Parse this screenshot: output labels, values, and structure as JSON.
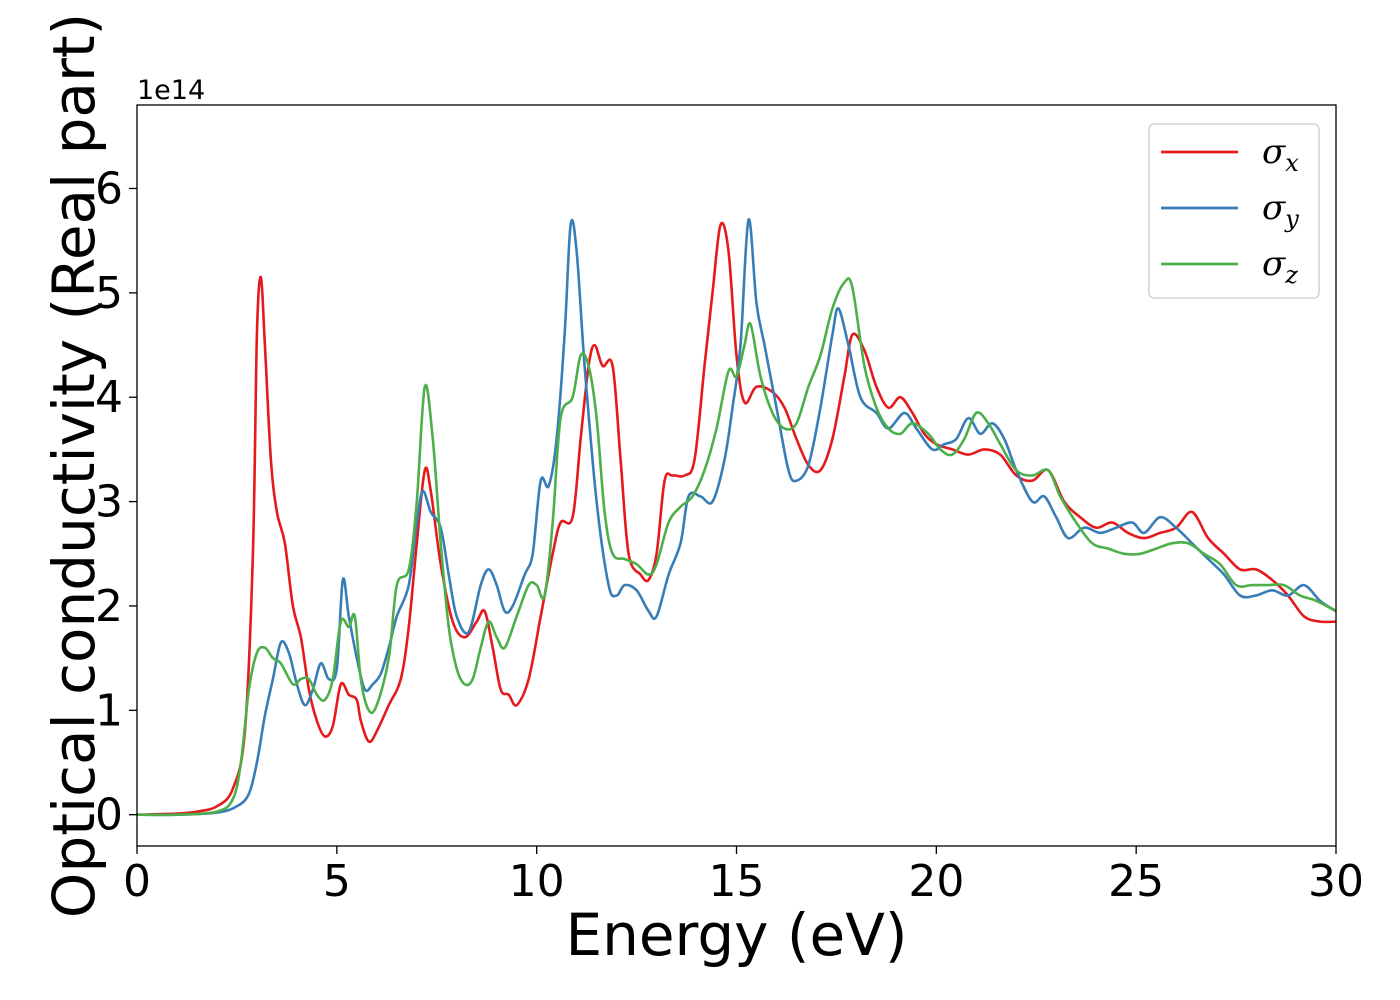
{
  "chart_data": {
    "type": "line",
    "xlabel": "Energy (eV)",
    "ylabel": "Optical conductivity (Real part)",
    "y_offset_label": "1e14",
    "xlim": [
      0,
      30
    ],
    "ylim": [
      -0.3,
      6.8
    ],
    "x_ticks": [
      0,
      5,
      10,
      15,
      20,
      25,
      30
    ],
    "y_ticks": [
      0,
      1,
      2,
      3,
      4,
      5,
      6
    ],
    "grid": false,
    "legend_position": "top-right",
    "series": [
      {
        "name": "σx",
        "symbol": "σ",
        "subscript": "x",
        "color": "#e41a1c",
        "points": [
          [
            0,
            0.0
          ],
          [
            1.0,
            0.01
          ],
          [
            1.5,
            0.03
          ],
          [
            2.0,
            0.08
          ],
          [
            2.4,
            0.25
          ],
          [
            2.7,
            0.8
          ],
          [
            2.9,
            2.5
          ],
          [
            3.0,
            4.6
          ],
          [
            3.1,
            5.15
          ],
          [
            3.2,
            4.5
          ],
          [
            3.35,
            3.4
          ],
          [
            3.5,
            2.9
          ],
          [
            3.7,
            2.6
          ],
          [
            3.9,
            2.0
          ],
          [
            4.1,
            1.7
          ],
          [
            4.3,
            1.2
          ],
          [
            4.5,
            0.9
          ],
          [
            4.7,
            0.75
          ],
          [
            4.9,
            0.85
          ],
          [
            5.1,
            1.25
          ],
          [
            5.3,
            1.15
          ],
          [
            5.5,
            1.1
          ],
          [
            5.6,
            0.9
          ],
          [
            5.8,
            0.7
          ],
          [
            6.0,
            0.8
          ],
          [
            6.3,
            1.05
          ],
          [
            6.6,
            1.3
          ],
          [
            6.8,
            1.8
          ],
          [
            7.0,
            2.6
          ],
          [
            7.2,
            3.3
          ],
          [
            7.35,
            3.1
          ],
          [
            7.6,
            2.4
          ],
          [
            7.9,
            1.85
          ],
          [
            8.2,
            1.7
          ],
          [
            8.5,
            1.85
          ],
          [
            8.7,
            1.95
          ],
          [
            8.9,
            1.6
          ],
          [
            9.1,
            1.2
          ],
          [
            9.3,
            1.15
          ],
          [
            9.5,
            1.05
          ],
          [
            9.8,
            1.3
          ],
          [
            10.1,
            1.9
          ],
          [
            10.4,
            2.5
          ],
          [
            10.6,
            2.8
          ],
          [
            10.9,
            2.85
          ],
          [
            11.1,
            3.6
          ],
          [
            11.3,
            4.3
          ],
          [
            11.45,
            4.5
          ],
          [
            11.65,
            4.3
          ],
          [
            11.9,
            4.3
          ],
          [
            12.1,
            3.4
          ],
          [
            12.3,
            2.5
          ],
          [
            12.6,
            2.3
          ],
          [
            12.8,
            2.25
          ],
          [
            13.0,
            2.5
          ],
          [
            13.2,
            3.2
          ],
          [
            13.4,
            3.25
          ],
          [
            13.7,
            3.25
          ],
          [
            13.95,
            3.4
          ],
          [
            14.2,
            4.3
          ],
          [
            14.4,
            5.0
          ],
          [
            14.6,
            5.65
          ],
          [
            14.8,
            5.4
          ],
          [
            15.0,
            4.4
          ],
          [
            15.2,
            3.95
          ],
          [
            15.5,
            4.1
          ],
          [
            15.9,
            4.05
          ],
          [
            16.2,
            3.9
          ],
          [
            16.5,
            3.6
          ],
          [
            16.8,
            3.35
          ],
          [
            17.1,
            3.3
          ],
          [
            17.4,
            3.6
          ],
          [
            17.7,
            4.2
          ],
          [
            17.9,
            4.6
          ],
          [
            18.2,
            4.45
          ],
          [
            18.5,
            4.1
          ],
          [
            18.8,
            3.9
          ],
          [
            19.1,
            4.0
          ],
          [
            19.4,
            3.85
          ],
          [
            19.7,
            3.65
          ],
          [
            20.0,
            3.55
          ],
          [
            20.4,
            3.5
          ],
          [
            20.8,
            3.45
          ],
          [
            21.2,
            3.5
          ],
          [
            21.6,
            3.45
          ],
          [
            22.0,
            3.25
          ],
          [
            22.4,
            3.2
          ],
          [
            22.8,
            3.3
          ],
          [
            23.2,
            3.0
          ],
          [
            23.6,
            2.85
          ],
          [
            24.0,
            2.75
          ],
          [
            24.4,
            2.8
          ],
          [
            24.8,
            2.7
          ],
          [
            25.2,
            2.65
          ],
          [
            25.6,
            2.7
          ],
          [
            26.0,
            2.75
          ],
          [
            26.4,
            2.9
          ],
          [
            26.8,
            2.65
          ],
          [
            27.2,
            2.5
          ],
          [
            27.6,
            2.35
          ],
          [
            28.0,
            2.35
          ],
          [
            28.4,
            2.25
          ],
          [
            28.8,
            2.1
          ],
          [
            29.2,
            1.9
          ],
          [
            29.6,
            1.85
          ],
          [
            30.0,
            1.85
          ]
        ]
      },
      {
        "name": "σy",
        "symbol": "σ",
        "subscript": "y",
        "color": "#377eb8",
        "points": [
          [
            0,
            0.0
          ],
          [
            1.0,
            0.0
          ],
          [
            2.0,
            0.02
          ],
          [
            2.5,
            0.08
          ],
          [
            2.8,
            0.2
          ],
          [
            3.0,
            0.5
          ],
          [
            3.2,
            0.95
          ],
          [
            3.4,
            1.3
          ],
          [
            3.6,
            1.65
          ],
          [
            3.8,
            1.55
          ],
          [
            4.0,
            1.25
          ],
          [
            4.2,
            1.05
          ],
          [
            4.4,
            1.2
          ],
          [
            4.6,
            1.45
          ],
          [
            4.8,
            1.3
          ],
          [
            5.0,
            1.4
          ],
          [
            5.15,
            2.25
          ],
          [
            5.3,
            1.9
          ],
          [
            5.5,
            1.5
          ],
          [
            5.7,
            1.2
          ],
          [
            5.9,
            1.25
          ],
          [
            6.1,
            1.35
          ],
          [
            6.3,
            1.6
          ],
          [
            6.5,
            1.9
          ],
          [
            6.8,
            2.2
          ],
          [
            7.0,
            2.8
          ],
          [
            7.15,
            3.1
          ],
          [
            7.35,
            2.9
          ],
          [
            7.6,
            2.75
          ],
          [
            7.8,
            2.3
          ],
          [
            8.0,
            1.9
          ],
          [
            8.3,
            1.75
          ],
          [
            8.6,
            2.2
          ],
          [
            8.8,
            2.35
          ],
          [
            9.0,
            2.2
          ],
          [
            9.2,
            1.95
          ],
          [
            9.4,
            2.0
          ],
          [
            9.7,
            2.3
          ],
          [
            9.9,
            2.5
          ],
          [
            10.1,
            3.2
          ],
          [
            10.3,
            3.15
          ],
          [
            10.5,
            3.6
          ],
          [
            10.7,
            4.6
          ],
          [
            10.85,
            5.65
          ],
          [
            11.0,
            5.4
          ],
          [
            11.2,
            4.3
          ],
          [
            11.5,
            3.0
          ],
          [
            11.8,
            2.2
          ],
          [
            12.0,
            2.1
          ],
          [
            12.2,
            2.2
          ],
          [
            12.5,
            2.15
          ],
          [
            12.8,
            1.95
          ],
          [
            13.0,
            1.9
          ],
          [
            13.3,
            2.3
          ],
          [
            13.6,
            2.6
          ],
          [
            13.8,
            3.05
          ],
          [
            14.1,
            3.05
          ],
          [
            14.4,
            3.0
          ],
          [
            14.7,
            3.4
          ],
          [
            14.9,
            3.9
          ],
          [
            15.1,
            4.5
          ],
          [
            15.3,
            5.7
          ],
          [
            15.5,
            4.9
          ],
          [
            15.7,
            4.5
          ],
          [
            16.0,
            3.9
          ],
          [
            16.3,
            3.3
          ],
          [
            16.5,
            3.2
          ],
          [
            16.8,
            3.35
          ],
          [
            17.1,
            3.9
          ],
          [
            17.4,
            4.6
          ],
          [
            17.55,
            4.85
          ],
          [
            17.8,
            4.5
          ],
          [
            18.1,
            4.0
          ],
          [
            18.5,
            3.85
          ],
          [
            18.8,
            3.7
          ],
          [
            19.2,
            3.85
          ],
          [
            19.5,
            3.7
          ],
          [
            19.9,
            3.5
          ],
          [
            20.2,
            3.55
          ],
          [
            20.5,
            3.6
          ],
          [
            20.8,
            3.8
          ],
          [
            21.1,
            3.65
          ],
          [
            21.4,
            3.75
          ],
          [
            21.7,
            3.6
          ],
          [
            22.0,
            3.3
          ],
          [
            22.4,
            3.0
          ],
          [
            22.7,
            3.05
          ],
          [
            23.0,
            2.85
          ],
          [
            23.3,
            2.65
          ],
          [
            23.7,
            2.75
          ],
          [
            24.1,
            2.7
          ],
          [
            24.5,
            2.75
          ],
          [
            24.9,
            2.8
          ],
          [
            25.2,
            2.7
          ],
          [
            25.6,
            2.85
          ],
          [
            26.0,
            2.75
          ],
          [
            26.4,
            2.6
          ],
          [
            26.8,
            2.45
          ],
          [
            27.2,
            2.3
          ],
          [
            27.6,
            2.1
          ],
          [
            28.0,
            2.1
          ],
          [
            28.4,
            2.15
          ],
          [
            28.8,
            2.1
          ],
          [
            29.2,
            2.2
          ],
          [
            29.6,
            2.05
          ],
          [
            30.0,
            1.95
          ]
        ]
      },
      {
        "name": "σz",
        "symbol": "σ",
        "subscript": "z",
        "color": "#4daf4a",
        "points": [
          [
            0,
            0.0
          ],
          [
            1.0,
            0.0
          ],
          [
            2.0,
            0.03
          ],
          [
            2.4,
            0.15
          ],
          [
            2.6,
            0.5
          ],
          [
            2.8,
            1.2
          ],
          [
            3.0,
            1.55
          ],
          [
            3.2,
            1.6
          ],
          [
            3.4,
            1.5
          ],
          [
            3.6,
            1.45
          ],
          [
            3.9,
            1.25
          ],
          [
            4.1,
            1.3
          ],
          [
            4.3,
            1.3
          ],
          [
            4.5,
            1.15
          ],
          [
            4.7,
            1.1
          ],
          [
            4.9,
            1.3
          ],
          [
            5.1,
            1.85
          ],
          [
            5.3,
            1.8
          ],
          [
            5.45,
            1.9
          ],
          [
            5.6,
            1.3
          ],
          [
            5.8,
            1.0
          ],
          [
            6.0,
            1.05
          ],
          [
            6.3,
            1.5
          ],
          [
            6.5,
            2.2
          ],
          [
            6.8,
            2.35
          ],
          [
            7.0,
            3.0
          ],
          [
            7.2,
            4.1
          ],
          [
            7.4,
            3.6
          ],
          [
            7.6,
            2.6
          ],
          [
            7.8,
            1.8
          ],
          [
            8.0,
            1.4
          ],
          [
            8.2,
            1.25
          ],
          [
            8.4,
            1.3
          ],
          [
            8.6,
            1.6
          ],
          [
            8.8,
            1.85
          ],
          [
            9.0,
            1.7
          ],
          [
            9.2,
            1.6
          ],
          [
            9.5,
            1.9
          ],
          [
            9.8,
            2.2
          ],
          [
            10.0,
            2.2
          ],
          [
            10.2,
            2.1
          ],
          [
            10.4,
            2.8
          ],
          [
            10.6,
            3.8
          ],
          [
            10.9,
            4.0
          ],
          [
            11.1,
            4.4
          ],
          [
            11.3,
            4.3
          ],
          [
            11.5,
            3.8
          ],
          [
            11.7,
            2.9
          ],
          [
            11.9,
            2.5
          ],
          [
            12.2,
            2.45
          ],
          [
            12.5,
            2.4
          ],
          [
            12.8,
            2.3
          ],
          [
            13.0,
            2.4
          ],
          [
            13.3,
            2.8
          ],
          [
            13.6,
            2.95
          ],
          [
            13.9,
            3.05
          ],
          [
            14.2,
            3.3
          ],
          [
            14.5,
            3.7
          ],
          [
            14.8,
            4.25
          ],
          [
            15.0,
            4.2
          ],
          [
            15.2,
            4.5
          ],
          [
            15.35,
            4.7
          ],
          [
            15.6,
            4.2
          ],
          [
            15.9,
            3.85
          ],
          [
            16.2,
            3.7
          ],
          [
            16.5,
            3.75
          ],
          [
            16.8,
            4.1
          ],
          [
            17.1,
            4.4
          ],
          [
            17.4,
            4.85
          ],
          [
            17.7,
            5.1
          ],
          [
            17.9,
            5.05
          ],
          [
            18.2,
            4.3
          ],
          [
            18.5,
            3.9
          ],
          [
            18.8,
            3.7
          ],
          [
            19.1,
            3.65
          ],
          [
            19.4,
            3.75
          ],
          [
            19.8,
            3.65
          ],
          [
            20.1,
            3.5
          ],
          [
            20.4,
            3.45
          ],
          [
            20.7,
            3.6
          ],
          [
            21.0,
            3.85
          ],
          [
            21.3,
            3.75
          ],
          [
            21.6,
            3.55
          ],
          [
            22.0,
            3.3
          ],
          [
            22.4,
            3.25
          ],
          [
            22.8,
            3.3
          ],
          [
            23.1,
            3.05
          ],
          [
            23.5,
            2.8
          ],
          [
            23.9,
            2.6
          ],
          [
            24.3,
            2.55
          ],
          [
            24.7,
            2.5
          ],
          [
            25.1,
            2.5
          ],
          [
            25.5,
            2.55
          ],
          [
            25.9,
            2.6
          ],
          [
            26.3,
            2.6
          ],
          [
            26.7,
            2.5
          ],
          [
            27.1,
            2.4
          ],
          [
            27.5,
            2.2
          ],
          [
            27.9,
            2.2
          ],
          [
            28.3,
            2.2
          ],
          [
            28.7,
            2.2
          ],
          [
            29.1,
            2.1
          ],
          [
            29.5,
            2.05
          ],
          [
            30.0,
            1.95
          ]
        ]
      }
    ]
  }
}
